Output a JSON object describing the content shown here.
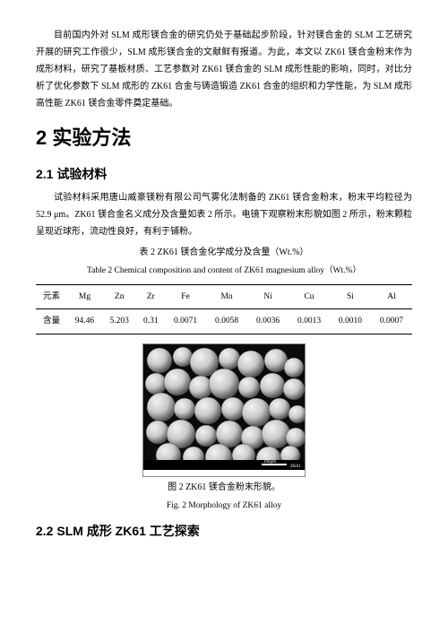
{
  "intro_para": "目前国内外对 SLM 成形镁合金的研究仍处于基础起步阶段，针对镁合金的 SLM 工艺研究开展的研究工作很少，SLM 成形镁合金的文献鲜有报道。为此，本文以 ZK61 镁合金粉末作为成形材料，研究了基板材质、工艺参数对 ZK61 镁合金的 SLM 成形性能的影响，同时，对比分析了优化参数下 SLM 成形的 ZK61 合金与铸造锻造 ZK61 合金的组织和力学性能，为 SLM 成形高性能 ZK61 镁合金零件奠定基础。",
  "h1": "2 实验方法",
  "h2_1": "2.1 试验材料",
  "materials_para": "试验材料采用唐山威豪镁粉有限公司气雾化法制备的 ZK61 镁合金粉末，粉末平均粒径为 52.9 μm。ZK61 镁合金名义成分及含量如表 2 所示。电镜下观察粉末形貌如图 2 所示，粉末颗粒呈现近球形，流动性良好，有利于铺粉。",
  "table2": {
    "caption_cn": "表 2 ZK61 镁合金化学成分及含量（Wt.%）",
    "caption_en": "Table 2 Chemical composition and content of ZK61 magnesium alloy（Wt.%）",
    "header_label": "元素",
    "row_label": "含量",
    "cols": [
      "Mg",
      "Zn",
      "Zr",
      "Fe",
      "Mn",
      "Ni",
      "Cu",
      "Si",
      "Al"
    ],
    "vals": [
      "94.46",
      "5.203",
      "0.31",
      "0.0071",
      "0.0058",
      "0.0036",
      "0.0013",
      "0.0010",
      "0.0007"
    ]
  },
  "fig2": {
    "caption_cn": "图 2 ZK61 镁合金粉末形貌。",
    "caption_en": "Fig. 2 Morphology of ZK61 alloy",
    "sem": {
      "width": 180,
      "height": 140,
      "bg": "#0b0b0b",
      "sphere_fill": "#c9c9c9",
      "sphere_hilite": "#f2f2f2",
      "sphere_shadow": "#555555",
      "scalebar_text": "100μm",
      "meta_text": "ZK61",
      "spheres": [
        [
          18,
          18,
          14
        ],
        [
          44,
          14,
          11
        ],
        [
          68,
          20,
          16
        ],
        [
          96,
          16,
          12
        ],
        [
          120,
          22,
          15
        ],
        [
          148,
          18,
          13
        ],
        [
          168,
          26,
          11
        ],
        [
          14,
          44,
          12
        ],
        [
          38,
          42,
          15
        ],
        [
          64,
          48,
          13
        ],
        [
          90,
          44,
          17
        ],
        [
          118,
          48,
          12
        ],
        [
          144,
          46,
          14
        ],
        [
          168,
          50,
          12
        ],
        [
          20,
          70,
          16
        ],
        [
          46,
          72,
          12
        ],
        [
          72,
          74,
          15
        ],
        [
          100,
          72,
          13
        ],
        [
          126,
          76,
          16
        ],
        [
          152,
          72,
          12
        ],
        [
          172,
          78,
          10
        ],
        [
          16,
          98,
          13
        ],
        [
          42,
          100,
          16
        ],
        [
          70,
          102,
          12
        ],
        [
          96,
          100,
          15
        ],
        [
          122,
          104,
          13
        ],
        [
          148,
          100,
          16
        ],
        [
          170,
          104,
          11
        ],
        [
          28,
          124,
          14
        ],
        [
          56,
          126,
          12
        ],
        [
          84,
          126,
          15
        ],
        [
          112,
          124,
          13
        ],
        [
          140,
          128,
          14
        ],
        [
          164,
          124,
          11
        ]
      ]
    }
  },
  "h2_2": "2.2 SLM 成形 ZK61 工艺探索"
}
